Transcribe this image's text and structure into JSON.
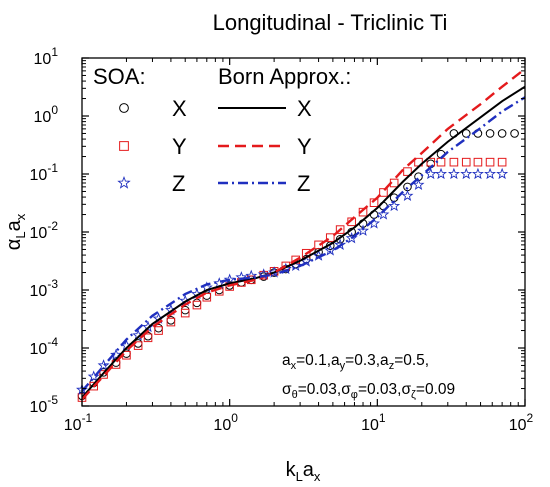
{
  "chart_data": {
    "type": "line",
    "title": "Longitudinal - Triclinic Ti",
    "xlabel": {
      "base": "k",
      "sub": "L",
      "tail": "a",
      "tail_sub": "x"
    },
    "ylabel": {
      "base": "α",
      "sub": "L",
      "tail": "a",
      "tail_sub": "x"
    },
    "xscale": "log",
    "yscale": "log",
    "xlim": [
      0.1,
      100
    ],
    "ylim": [
      1e-05,
      10
    ],
    "grid": false,
    "x_ticks": [
      {
        "value": 0.1,
        "base": "10",
        "exp": "-1"
      },
      {
        "value": 1,
        "base": "10",
        "exp": "0"
      },
      {
        "value": 10,
        "base": "10",
        "exp": "1"
      },
      {
        "value": 100,
        "base": "10",
        "exp": "2"
      }
    ],
    "y_ticks": [
      {
        "value": 1e-05,
        "base": "10",
        "exp": "-5"
      },
      {
        "value": 0.0001,
        "base": "10",
        "exp": "-4"
      },
      {
        "value": 0.001,
        "base": "10",
        "exp": "-3"
      },
      {
        "value": 0.01,
        "base": "10",
        "exp": "-2"
      },
      {
        "value": 0.1,
        "base": "10",
        "exp": "-1"
      },
      {
        "value": 1,
        "base": "10",
        "exp": "0"
      },
      {
        "value": 10,
        "base": "10",
        "exp": "1"
      }
    ],
    "legend": {
      "placement": "top-left",
      "left_header": "SOA:",
      "right_header": "Born Approx.:",
      "entries": [
        {
          "marker_label": "X",
          "line_label": "X"
        },
        {
          "marker_label": "Y",
          "line_label": "Y"
        },
        {
          "marker_label": "Z",
          "line_label": "Z"
        }
      ]
    },
    "annotation": {
      "line1": [
        {
          "t": "a"
        },
        {
          "t": "x",
          "sub": true
        },
        {
          "t": "=0.1,a"
        },
        {
          "t": "y",
          "sub": true
        },
        {
          "t": "=0.3,a"
        },
        {
          "t": "z",
          "sub": true
        },
        {
          "t": "=0.5,"
        }
      ],
      "line2": [
        {
          "t": "σ"
        },
        {
          "t": "θ",
          "sub": true
        },
        {
          "t": "=0.03,σ"
        },
        {
          "t": "φ",
          "sub": true
        },
        {
          "t": "=0.03,σ"
        },
        {
          "t": "ζ",
          "sub": true
        },
        {
          "t": "=0.09"
        }
      ]
    },
    "series": [
      {
        "id": "born_x",
        "kind": "line",
        "style": "solid",
        "color": "#000000",
        "x": [
          0.1,
          0.15,
          0.2,
          0.3,
          0.5,
          0.7,
          1,
          1.5,
          2,
          3,
          5,
          7,
          10,
          15,
          20,
          30,
          50,
          70,
          100
        ],
        "y": [
          1.4e-05,
          4.5e-05,
          0.0001,
          0.00026,
          0.00063,
          0.001,
          0.0013,
          0.0016,
          0.002,
          0.0032,
          0.0065,
          0.012,
          0.026,
          0.075,
          0.15,
          0.36,
          0.95,
          1.8,
          3.2
        ]
      },
      {
        "id": "born_y",
        "kind": "line",
        "style": "dashed",
        "color": "#e41a1c",
        "x": [
          0.1,
          0.15,
          0.2,
          0.3,
          0.5,
          0.7,
          1,
          1.5,
          2,
          3,
          5,
          7,
          10,
          15,
          20,
          30,
          50,
          70,
          100
        ],
        "y": [
          1.3e-05,
          4e-05,
          9e-05,
          0.00023,
          0.00056,
          0.0009,
          0.0012,
          0.0015,
          0.002,
          0.0036,
          0.0085,
          0.018,
          0.039,
          0.12,
          0.23,
          0.6,
          1.6,
          3.2,
          6.5
        ]
      },
      {
        "id": "born_z",
        "kind": "line",
        "style": "dashdot",
        "color": "#1f2fbf",
        "x": [
          0.1,
          0.15,
          0.2,
          0.3,
          0.5,
          0.7,
          1,
          1.5,
          2,
          3,
          5,
          7,
          10,
          15,
          20,
          30,
          50,
          70,
          100
        ],
        "y": [
          1.8e-05,
          6e-05,
          0.00014,
          0.00036,
          0.00085,
          0.00125,
          0.0015,
          0.00165,
          0.00185,
          0.0026,
          0.0048,
          0.0085,
          0.018,
          0.05,
          0.095,
          0.24,
          0.62,
          1.2,
          2.1
        ]
      },
      {
        "id": "soa_x",
        "kind": "marker",
        "marker": "circle",
        "color": "#000000",
        "x": [
          0.1,
          0.12,
          0.14,
          0.17,
          0.2,
          0.24,
          0.28,
          0.33,
          0.4,
          0.5,
          0.6,
          0.7,
          0.85,
          1,
          1.2,
          1.4,
          1.7,
          2,
          2.4,
          2.8,
          3.3,
          4,
          4.8,
          5.6,
          6.7,
          8,
          9.5,
          11,
          13,
          16,
          19,
          23,
          27,
          33,
          40,
          48,
          58,
          70,
          85
        ],
        "y": [
          1.5e-05,
          2.5e-05,
          3.8e-05,
          5.6e-05,
          8e-05,
          0.00012,
          0.00016,
          0.00022,
          0.0003,
          0.00045,
          0.0006,
          0.0008,
          0.001,
          0.0012,
          0.00135,
          0.0015,
          0.0017,
          0.002,
          0.0023,
          0.0028,
          0.0034,
          0.0045,
          0.0058,
          0.0075,
          0.01,
          0.014,
          0.02,
          0.028,
          0.039,
          0.06,
          0.09,
          0.15,
          0.22,
          0.5,
          0.5,
          0.5,
          0.5,
          0.5,
          0.5
        ]
      },
      {
        "id": "soa_y",
        "kind": "marker",
        "marker": "square",
        "color": "#e41a1c",
        "x": [
          0.1,
          0.12,
          0.14,
          0.17,
          0.2,
          0.24,
          0.28,
          0.33,
          0.4,
          0.5,
          0.6,
          0.7,
          0.85,
          1,
          1.2,
          1.4,
          1.7,
          2,
          2.4,
          2.8,
          3.3,
          4,
          4.8,
          5.6,
          6.7,
          8,
          9.5,
          11,
          13,
          16,
          19,
          23,
          27,
          33,
          40,
          48,
          58,
          70
        ],
        "y": [
          1.4e-05,
          2.2e-05,
          3.5e-05,
          5.2e-05,
          7.5e-05,
          0.00011,
          0.00015,
          0.0002,
          0.00028,
          0.0004,
          0.00055,
          0.00075,
          0.00095,
          0.00115,
          0.00135,
          0.0015,
          0.0018,
          0.0021,
          0.0026,
          0.0033,
          0.0043,
          0.006,
          0.008,
          0.011,
          0.015,
          0.022,
          0.032,
          0.048,
          0.07,
          0.11,
          0.16,
          0.16,
          0.16,
          0.16,
          0.16,
          0.16,
          0.16,
          0.16
        ]
      },
      {
        "id": "soa_z",
        "kind": "marker",
        "marker": "star",
        "color": "#1f2fbf",
        "x": [
          0.1,
          0.12,
          0.14,
          0.17,
          0.2,
          0.24,
          0.28,
          0.33,
          0.4,
          0.5,
          0.6,
          0.7,
          0.85,
          1,
          1.2,
          1.4,
          1.7,
          2,
          2.4,
          2.8,
          3.3,
          4,
          4.8,
          5.6,
          6.7,
          8,
          9.5,
          11,
          13,
          16,
          19,
          23,
          27,
          33,
          40,
          48,
          58,
          70
        ],
        "y": [
          1.9e-05,
          3.2e-05,
          5e-05,
          7.6e-05,
          0.00011,
          0.000165,
          0.00023,
          0.00032,
          0.00045,
          0.00065,
          0.00085,
          0.0011,
          0.0013,
          0.0015,
          0.00165,
          0.00175,
          0.00185,
          0.002,
          0.0023,
          0.0026,
          0.0031,
          0.0039,
          0.0048,
          0.006,
          0.0078,
          0.0105,
          0.014,
          0.02,
          0.028,
          0.042,
          0.065,
          0.1,
          0.1,
          0.1,
          0.1,
          0.1,
          0.1,
          0.1
        ]
      }
    ]
  }
}
